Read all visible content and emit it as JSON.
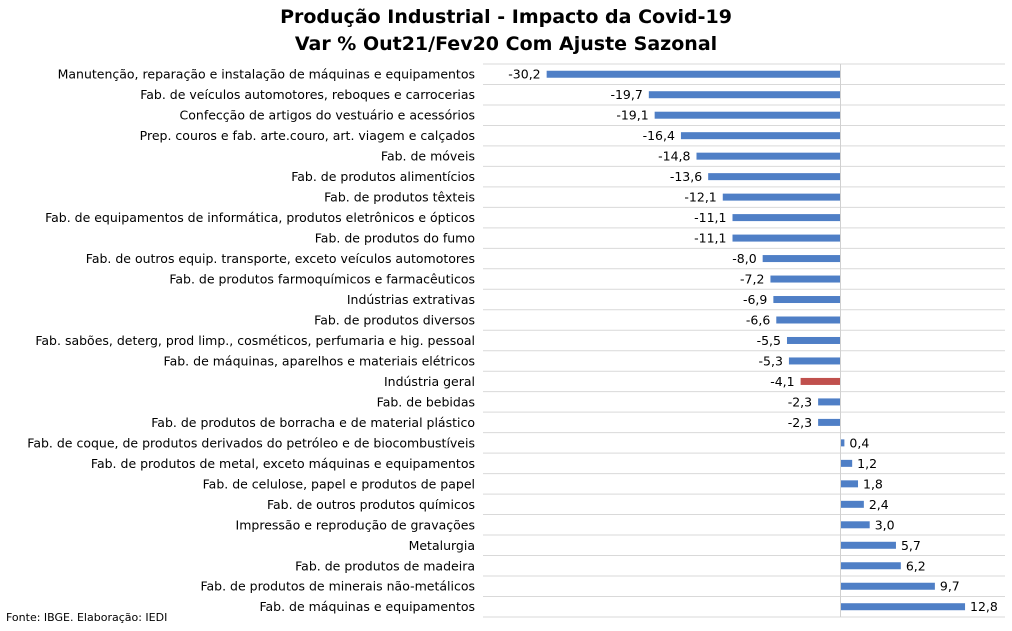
{
  "chart_data": {
    "type": "bar",
    "orientation": "horizontal",
    "title": "Produção Industrial - Impacto da Covid-19",
    "subtitle": "Var % Out21/Fev20 Com Ajuste Sazonal",
    "xlabel": "",
    "ylabel": "",
    "grid": true,
    "legend": "none",
    "colors": {
      "default": "#4f7fc6",
      "highlight": "#c0504d",
      "grid": "#d9d9d9"
    },
    "highlight_category": "Indústria geral",
    "xlim": [
      -35,
      20
    ],
    "categories": [
      "Manutenção, reparação e instalação de máquinas e equipamentos",
      "Fab. de veículos automotores, reboques e carrocerias",
      "Confecção de artigos do vestuário e acessórios",
      "Prep. couros e fab. arte.couro, art. viagem e calçados",
      "Fab. de móveis",
      "Fab. de produtos alimentícios",
      "Fab. de produtos têxteis",
      "Fab. de equipamentos de informática, produtos eletrônicos e ópticos",
      "Fab. de produtos do fumo",
      "Fab. de outros equip. transporte, exceto veículos automotores",
      "Fab. de produtos farmoquímicos e farmacêuticos",
      "Indústrias extrativas",
      "Fab. de produtos diversos",
      "Fab. sabões, deterg, prod limp., cosméticos, perfumaria e hig. pessoal",
      "Fab. de máquinas, aparelhos e materiais elétricos",
      "Indústria geral",
      "Fab. de bebidas",
      "Fab. de produtos de borracha e de material plástico",
      "Fab. de coque, de produtos derivados do petróleo e de biocombustíveis",
      "Fab. de produtos de metal, exceto máquinas e equipamentos",
      "Fab. de celulose, papel e produtos de papel",
      "Fab. de outros produtos químicos",
      "Impressão e reprodução de gravações",
      "Metalurgia",
      "Fab. de produtos de madeira",
      "Fab. de produtos de minerais não-metálicos",
      "Fab. de máquinas e equipamentos"
    ],
    "values": [
      -30.2,
      -19.7,
      -19.1,
      -16.4,
      -14.8,
      -13.6,
      -12.1,
      -11.1,
      -11.1,
      -8.0,
      -7.2,
      -6.9,
      -6.6,
      -5.5,
      -5.3,
      -4.1,
      -2.3,
      -2.3,
      0.4,
      1.2,
      1.8,
      2.4,
      3.0,
      5.7,
      6.2,
      9.7,
      12.8
    ],
    "labels": [
      "-30,2",
      "-19,7",
      "-19,1",
      "-16,4",
      "-14,8",
      "-13,6",
      "-12,1",
      "-11,1",
      "-11,1",
      "-8,0",
      "-7,2",
      "-6,9",
      "-6,6",
      "-5,5",
      "-5,3",
      "-4,1",
      "-2,3",
      "-2,3",
      "0,4",
      "1,2",
      "1,8",
      "2,4",
      "3,0",
      "5,7",
      "6,2",
      "9,7",
      "12,8"
    ]
  },
  "source": "Fonte: IBGE. Elaboração: IEDI"
}
